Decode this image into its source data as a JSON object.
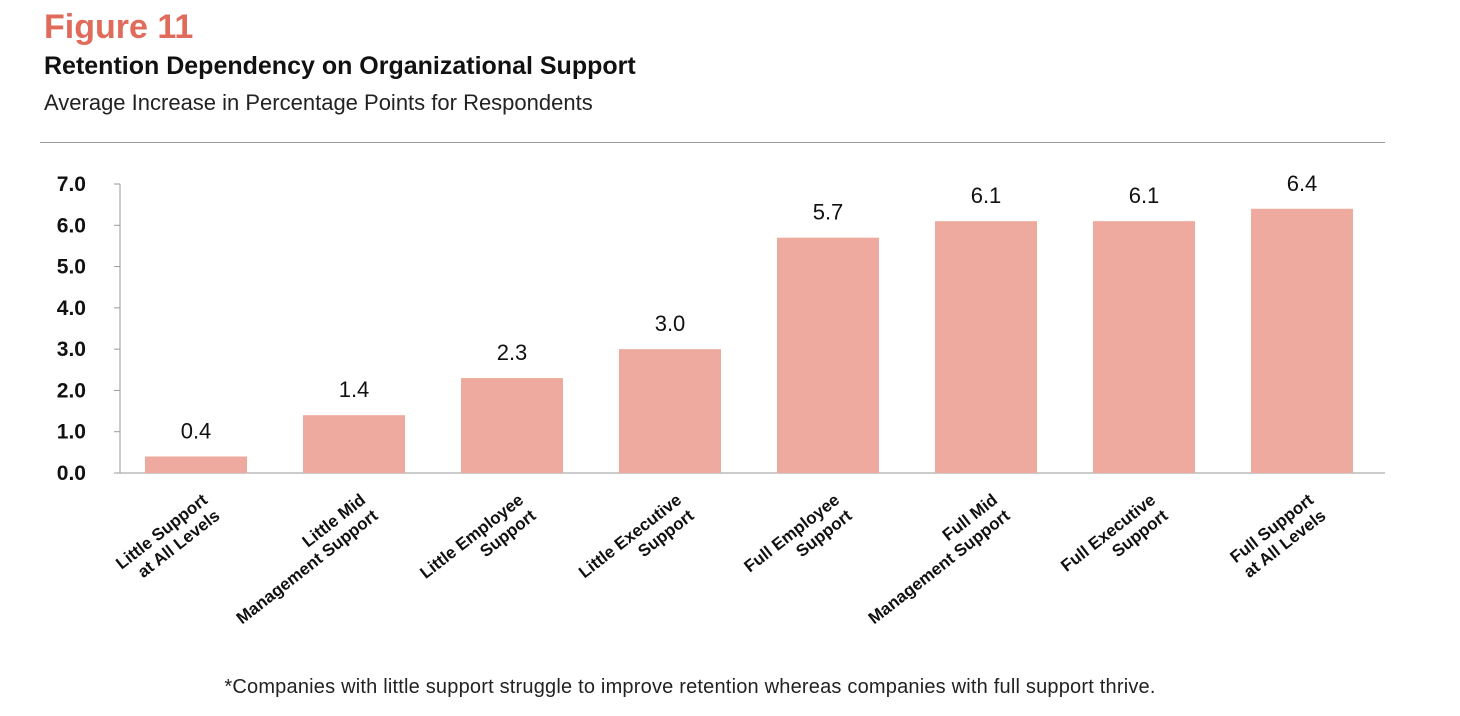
{
  "figure_label": "Figure 11",
  "footnote": "*Companies with little support struggle to improve retention whereas companies with full support thrive.",
  "colors": {
    "bar": "#eeaa9e",
    "figure_label": "#e06b5b",
    "axis": "#9a9a9a"
  },
  "chart_data": {
    "type": "bar",
    "title": "Retention Dependency on Organizational Support",
    "subtitle": "Average Increase in Percentage Points for Respondents",
    "xlabel": "",
    "ylabel": "",
    "ylim": [
      0,
      7
    ],
    "yticks": [
      "0.0",
      "1.0",
      "2.0",
      "3.0",
      "4.0",
      "5.0",
      "6.0",
      "7.0"
    ],
    "grid": false,
    "categories": [
      [
        "Little Support",
        "at All Levels"
      ],
      [
        "Little Mid",
        "Management Support"
      ],
      [
        "Little Employee",
        "Support"
      ],
      [
        "Little Executive",
        "Support"
      ],
      [
        "Full Employee",
        "Support"
      ],
      [
        "Full Mid",
        "Management Support"
      ],
      [
        "Full Executive",
        "Support"
      ],
      [
        "Full Support",
        "at All Levels"
      ]
    ],
    "values": [
      0.4,
      1.4,
      2.3,
      3.0,
      5.7,
      6.1,
      6.1,
      6.4
    ],
    "data_labels": [
      "0.4",
      "1.4",
      "2.3",
      "3.0",
      "5.7",
      "6.1",
      "6.1",
      "6.4"
    ]
  }
}
